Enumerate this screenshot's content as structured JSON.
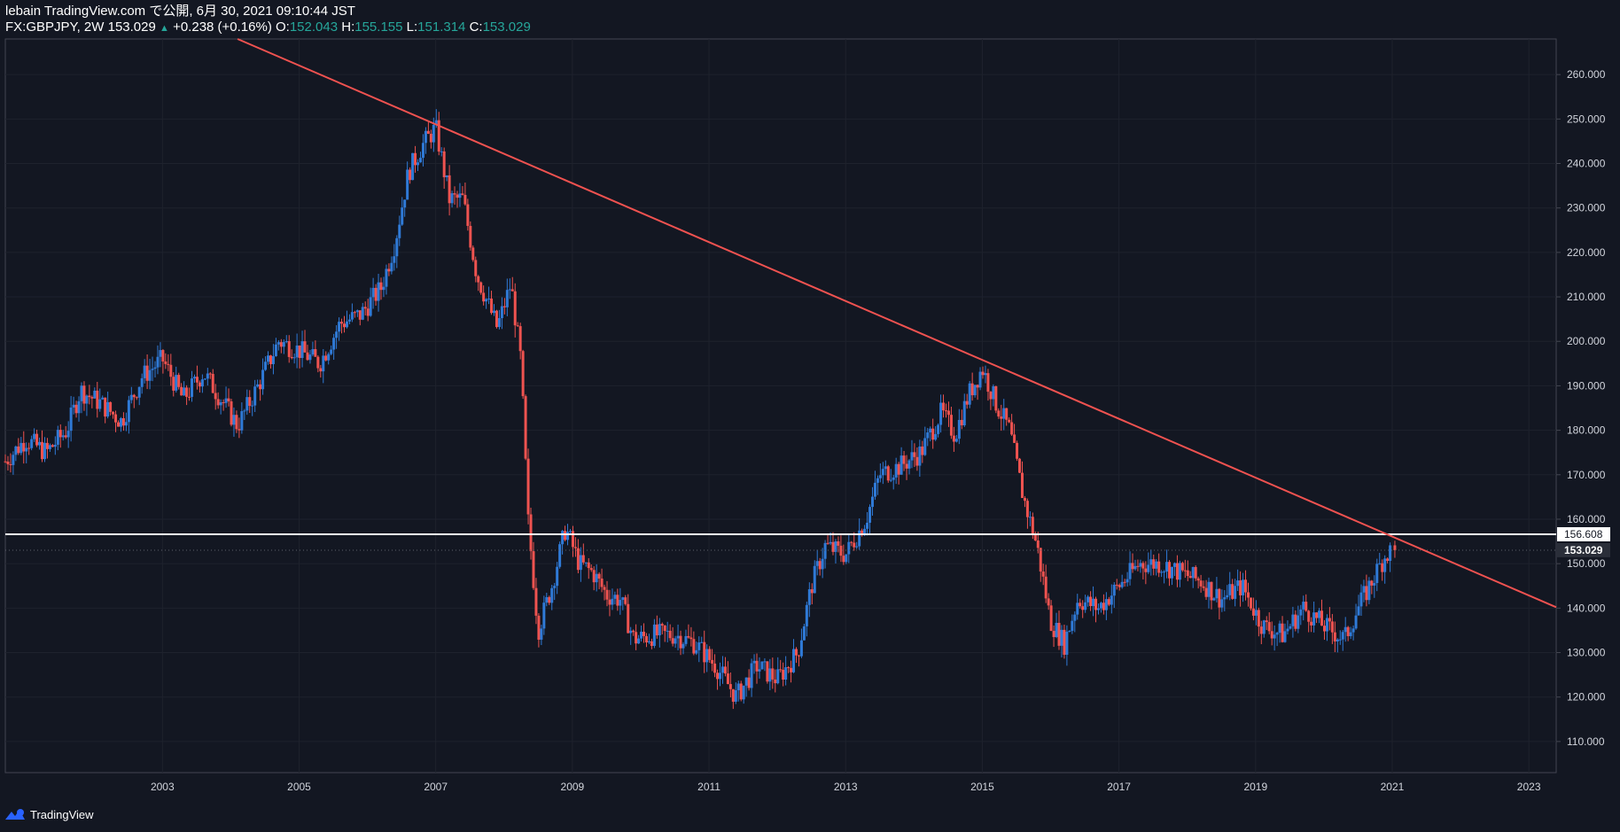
{
  "header": {
    "author_line": "lebain TradingView.com で公開, 6月 30, 2021 09:10:44 JST",
    "symbol": "FX:GBPJPY, 2W",
    "last": "153.029",
    "change": "+0.238 (+0.16%)",
    "o_label": "O:",
    "o_value": "152.043",
    "h_label": "H:",
    "h_value": "155.155",
    "l_label": "L:",
    "l_value": "151.314",
    "c_label": "C:",
    "c_value": "153.029"
  },
  "footer": {
    "brand": "TradingView",
    "icon": "tradingview-logo-icon"
  },
  "colors": {
    "background": "#131722",
    "up": "#2f7ad7",
    "down": "#ef5350",
    "trendline": "#f05250",
    "hline": "#ffffff",
    "axis_text": "#d1d4dc"
  },
  "chart_data": {
    "type": "candlestick",
    "symbol": "FX:GBPJPY",
    "interval": "2W",
    "ylim": [
      103,
      268
    ],
    "xlim": [
      2001.2,
      2023.9
    ],
    "y_ticks": [
      "110.000",
      "120.000",
      "130.000",
      "140.000",
      "150.000",
      "160.000",
      "170.000",
      "180.000",
      "190.000",
      "200.000",
      "210.000",
      "220.000",
      "230.000",
      "240.000",
      "250.000",
      "260.000"
    ],
    "x_ticks": [
      "2003",
      "2005",
      "2007",
      "2009",
      "2011",
      "2013",
      "2015",
      "2017",
      "2019",
      "2021",
      "2023"
    ],
    "price_labels": {
      "horizontal_line": "156.608",
      "last_price": "153.029"
    },
    "horizontal_line": 156.608,
    "last_price": 153.029,
    "trendline": {
      "from": [
        2004.6,
        268
      ],
      "to": [
        2023.9,
        140.2
      ]
    },
    "price_path": [
      [
        2001.2,
        173
      ],
      [
        2001.5,
        178
      ],
      [
        2001.8,
        175
      ],
      [
        2002.1,
        180
      ],
      [
        2002.3,
        189
      ],
      [
        2002.6,
        186
      ],
      [
        2002.9,
        182
      ],
      [
        2003.2,
        192
      ],
      [
        2003.5,
        196
      ],
      [
        2003.8,
        187
      ],
      [
        2004.1,
        193
      ],
      [
        2004.4,
        186
      ],
      [
        2004.6,
        181
      ],
      [
        2004.9,
        190
      ],
      [
        2005.2,
        200
      ],
      [
        2005.5,
        198
      ],
      [
        2005.8,
        195
      ],
      [
        2006.1,
        204
      ],
      [
        2006.4,
        206
      ],
      [
        2006.7,
        212
      ],
      [
        2006.9,
        222
      ],
      [
        2007.1,
        238
      ],
      [
        2007.3,
        244
      ],
      [
        2007.5,
        248
      ],
      [
        2007.7,
        232
      ],
      [
        2007.9,
        232
      ],
      [
        2008.1,
        215
      ],
      [
        2008.4,
        203
      ],
      [
        2008.6,
        213
      ],
      [
        2008.75,
        195
      ],
      [
        2008.85,
        160
      ],
      [
        2009.0,
        135
      ],
      [
        2009.2,
        145
      ],
      [
        2009.4,
        158
      ],
      [
        2009.6,
        150
      ],
      [
        2009.8,
        148
      ],
      [
        2010.0,
        143
      ],
      [
        2010.2,
        142
      ],
      [
        2010.4,
        133
      ],
      [
        2010.7,
        134
      ],
      [
        2011.0,
        134
      ],
      [
        2011.3,
        132
      ],
      [
        2011.6,
        127
      ],
      [
        2011.9,
        120
      ],
      [
        2012.2,
        127
      ],
      [
        2012.5,
        124
      ],
      [
        2012.8,
        130
      ],
      [
        2013.0,
        145
      ],
      [
        2013.2,
        154
      ],
      [
        2013.5,
        152
      ],
      [
        2013.8,
        160
      ],
      [
        2014.0,
        170
      ],
      [
        2014.3,
        172
      ],
      [
        2014.6,
        175
      ],
      [
        2014.9,
        184
      ],
      [
        2015.1,
        179
      ],
      [
        2015.3,
        188
      ],
      [
        2015.5,
        194
      ],
      [
        2015.7,
        186
      ],
      [
        2015.9,
        180
      ],
      [
        2016.1,
        165
      ],
      [
        2016.3,
        154
      ],
      [
        2016.5,
        137
      ],
      [
        2016.7,
        132
      ],
      [
        2016.9,
        142
      ],
      [
        2017.2,
        140
      ],
      [
        2017.5,
        145
      ],
      [
        2017.8,
        150
      ],
      [
        2018.1,
        150
      ],
      [
        2018.4,
        148
      ],
      [
        2018.7,
        146
      ],
      [
        2019.0,
        142
      ],
      [
        2019.3,
        145
      ],
      [
        2019.6,
        136
      ],
      [
        2019.9,
        134
      ],
      [
        2020.2,
        140
      ],
      [
        2020.5,
        136
      ],
      [
        2020.8,
        133
      ],
      [
        2021.0,
        140
      ],
      [
        2021.2,
        146
      ],
      [
        2021.4,
        152
      ],
      [
        2021.5,
        153.029
      ]
    ]
  }
}
